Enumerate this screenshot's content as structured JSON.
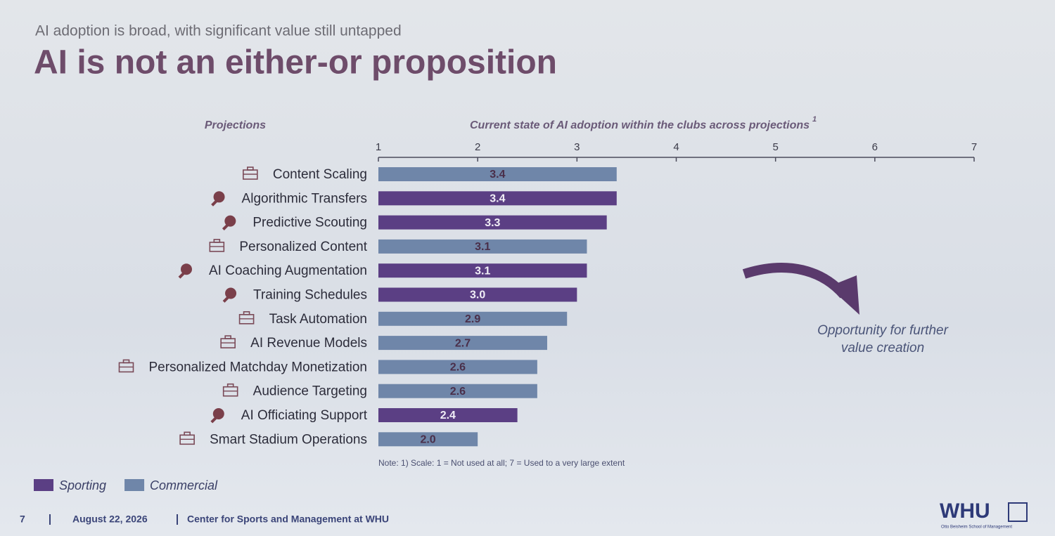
{
  "chart_data": {
    "type": "bar",
    "orientation": "horizontal",
    "subtitle": "AI adoption is broad, with significant value still untapped",
    "title": "AI is not an either-or proposition",
    "category_header": "Projections",
    "x_label": "Current state of AI adoption within the clubs across projections",
    "x_label_note": "1",
    "categories": [
      "Content Scaling",
      "Algorithmic Transfers",
      "Predictive Scouting",
      "Personalized Content",
      "AI Coaching Augmentation",
      "Training Schedules",
      "Task Automation",
      "AI Revenue Models",
      "Personalized Matchday Monetization",
      "Audience Targeting",
      "AI Officiating Support",
      "Smart Stadium Operations"
    ],
    "series": [
      {
        "name": "Sporting",
        "color": "#5b3f84",
        "values": [
          null,
          3.4,
          3.3,
          null,
          3.1,
          3.0,
          null,
          null,
          null,
          null,
          2.4,
          null
        ],
        "value_labels": [
          null,
          "3.4",
          "3.3",
          null,
          "3.1",
          "3.0",
          null,
          null,
          null,
          null,
          "2.4",
          null
        ]
      },
      {
        "name": "Commercial",
        "color": "#6f86a9",
        "values": [
          3.4,
          null,
          null,
          3.1,
          null,
          null,
          2.9,
          2.7,
          2.6,
          2.6,
          null,
          2.0
        ],
        "value_labels": [
          "3.4",
          null,
          null,
          "3.1",
          null,
          null,
          "2.9",
          "2.7",
          "2.6",
          "2.6",
          null,
          "2.0"
        ]
      }
    ],
    "xlim": [
      1,
      7
    ],
    "xticks": [
      1,
      2,
      3,
      4,
      5,
      6,
      7
    ],
    "note": "Note: 1) Scale: 1 = Not used at all; 7 = Used to a very large extent",
    "annotation": "Opportunity for further value creation"
  },
  "footer": {
    "page": "7",
    "date": "August 22, 2026",
    "center": "Center for Sports and Management at WHU",
    "logo": "WHU",
    "logo_subtitle": "Otto Beisheim School of Management"
  }
}
